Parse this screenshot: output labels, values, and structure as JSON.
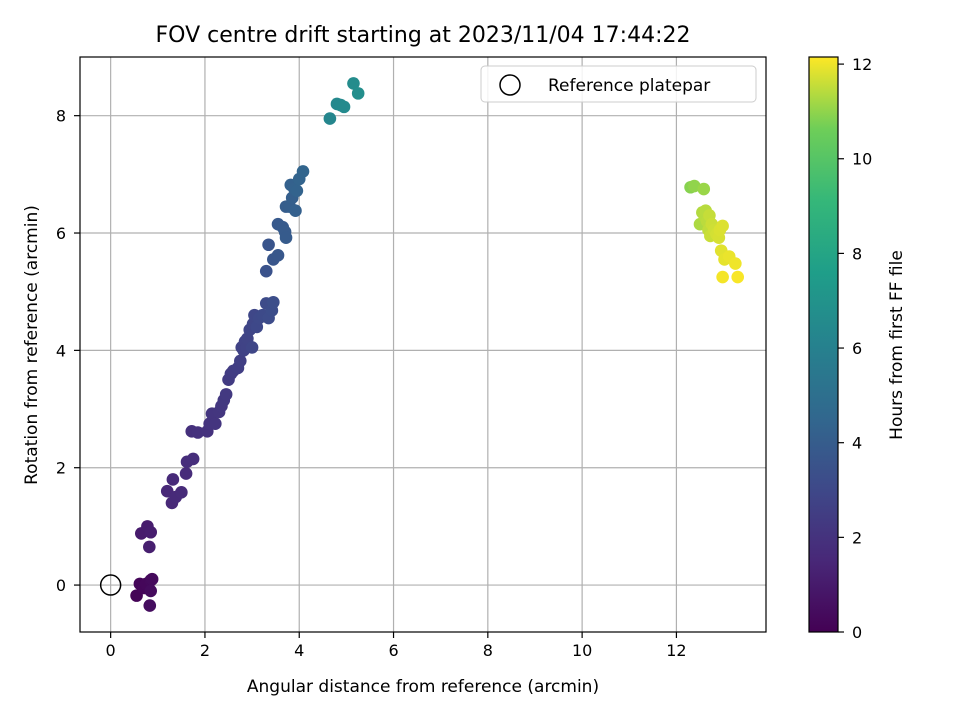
{
  "chart_data": {
    "type": "scatter",
    "title": "FOV centre drift starting at 2023/11/04 17:44:22",
    "xlabel": "Angular distance from reference (arcmin)",
    "ylabel": "Rotation from reference (arcmin)",
    "xlim": [
      -0.65,
      13.9
    ],
    "ylim": [
      -0.8,
      9.0
    ],
    "xticks": [
      0,
      2,
      4,
      6,
      8,
      10,
      12
    ],
    "yticks": [
      0,
      2,
      4,
      6,
      8
    ],
    "grid": true,
    "legend": {
      "position": "top-right",
      "entries": [
        {
          "label": "Reference platepar",
          "marker": "open-circle"
        }
      ]
    },
    "reference_point": {
      "x": 0,
      "y": 0
    },
    "colorbar": {
      "label": "Hours from first FF file",
      "colormap": "viridis",
      "range": [
        0,
        12.15
      ],
      "ticks": [
        0,
        2,
        4,
        6,
        8,
        10,
        12
      ]
    },
    "points": [
      {
        "x": 0.55,
        "y": -0.18,
        "c": 0.1
      },
      {
        "x": 0.62,
        "y": 0.02,
        "c": 0.15
      },
      {
        "x": 0.7,
        "y": -0.05,
        "c": 0.2
      },
      {
        "x": 0.75,
        "y": 0.02,
        "c": 0.25
      },
      {
        "x": 0.85,
        "y": 0.08,
        "c": 0.3
      },
      {
        "x": 0.88,
        "y": 0.1,
        "c": 0.35
      },
      {
        "x": 0.85,
        "y": -0.1,
        "c": 0.4
      },
      {
        "x": 0.83,
        "y": -0.35,
        "c": 0.45
      },
      {
        "x": 0.65,
        "y": 0.88,
        "c": 1.0
      },
      {
        "x": 0.78,
        "y": 1.0,
        "c": 1.05
      },
      {
        "x": 0.85,
        "y": 0.9,
        "c": 1.1
      },
      {
        "x": 0.82,
        "y": 0.65,
        "c": 1.15
      },
      {
        "x": 1.2,
        "y": 1.6,
        "c": 1.5
      },
      {
        "x": 1.3,
        "y": 1.4,
        "c": 1.55
      },
      {
        "x": 1.32,
        "y": 1.8,
        "c": 1.6
      },
      {
        "x": 1.38,
        "y": 1.5,
        "c": 1.62
      },
      {
        "x": 1.5,
        "y": 1.58,
        "c": 1.65
      },
      {
        "x": 1.6,
        "y": 1.9,
        "c": 1.7
      },
      {
        "x": 1.62,
        "y": 2.1,
        "c": 1.75
      },
      {
        "x": 1.75,
        "y": 2.15,
        "c": 1.8
      },
      {
        "x": 1.72,
        "y": 2.62,
        "c": 1.9
      },
      {
        "x": 1.85,
        "y": 2.6,
        "c": 1.95
      },
      {
        "x": 2.05,
        "y": 2.62,
        "c": 2.0
      },
      {
        "x": 2.1,
        "y": 2.75,
        "c": 2.05
      },
      {
        "x": 2.15,
        "y": 2.92,
        "c": 2.1
      },
      {
        "x": 2.22,
        "y": 2.75,
        "c": 2.12
      },
      {
        "x": 2.3,
        "y": 2.95,
        "c": 2.15
      },
      {
        "x": 2.35,
        "y": 3.05,
        "c": 2.2
      },
      {
        "x": 2.4,
        "y": 3.15,
        "c": 2.25
      },
      {
        "x": 2.45,
        "y": 3.25,
        "c": 2.3
      },
      {
        "x": 2.5,
        "y": 3.5,
        "c": 2.4
      },
      {
        "x": 2.55,
        "y": 3.6,
        "c": 2.45
      },
      {
        "x": 2.6,
        "y": 3.65,
        "c": 2.5
      },
      {
        "x": 2.7,
        "y": 3.7,
        "c": 2.55
      },
      {
        "x": 2.75,
        "y": 3.82,
        "c": 2.6
      },
      {
        "x": 2.78,
        "y": 4.05,
        "c": 2.7
      },
      {
        "x": 2.82,
        "y": 4.0,
        "c": 2.72
      },
      {
        "x": 2.85,
        "y": 4.15,
        "c": 2.75
      },
      {
        "x": 2.88,
        "y": 4.05,
        "c": 2.78
      },
      {
        "x": 2.9,
        "y": 4.2,
        "c": 2.8
      },
      {
        "x": 2.95,
        "y": 4.35,
        "c": 2.85
      },
      {
        "x": 3.0,
        "y": 4.05,
        "c": 2.88
      },
      {
        "x": 3.02,
        "y": 4.45,
        "c": 2.9
      },
      {
        "x": 3.05,
        "y": 4.6,
        "c": 2.95
      },
      {
        "x": 3.1,
        "y": 4.4,
        "c": 3.0
      },
      {
        "x": 3.15,
        "y": 4.55,
        "c": 3.05
      },
      {
        "x": 3.22,
        "y": 4.6,
        "c": 3.1
      },
      {
        "x": 3.3,
        "y": 4.8,
        "c": 3.15
      },
      {
        "x": 3.35,
        "y": 4.55,
        "c": 3.2
      },
      {
        "x": 3.42,
        "y": 4.68,
        "c": 3.25
      },
      {
        "x": 3.45,
        "y": 4.82,
        "c": 3.3
      },
      {
        "x": 3.3,
        "y": 5.35,
        "c": 3.5
      },
      {
        "x": 3.35,
        "y": 5.8,
        "c": 3.6
      },
      {
        "x": 3.45,
        "y": 5.55,
        "c": 3.65
      },
      {
        "x": 3.55,
        "y": 5.62,
        "c": 3.7
      },
      {
        "x": 3.55,
        "y": 6.15,
        "c": 3.8
      },
      {
        "x": 3.65,
        "y": 6.1,
        "c": 3.85
      },
      {
        "x": 3.7,
        "y": 6.02,
        "c": 3.9
      },
      {
        "x": 3.72,
        "y": 5.92,
        "c": 3.92
      },
      {
        "x": 3.72,
        "y": 6.45,
        "c": 4.0
      },
      {
        "x": 3.8,
        "y": 6.45,
        "c": 4.05
      },
      {
        "x": 3.85,
        "y": 6.6,
        "c": 4.1
      },
      {
        "x": 3.92,
        "y": 6.38,
        "c": 4.15
      },
      {
        "x": 3.82,
        "y": 6.82,
        "c": 4.2
      },
      {
        "x": 3.9,
        "y": 6.75,
        "c": 4.25
      },
      {
        "x": 3.95,
        "y": 6.72,
        "c": 4.3
      },
      {
        "x": 4.0,
        "y": 6.92,
        "c": 4.35
      },
      {
        "x": 4.08,
        "y": 7.05,
        "c": 4.4
      },
      {
        "x": 4.65,
        "y": 7.95,
        "c": 6.3
      },
      {
        "x": 4.8,
        "y": 8.2,
        "c": 6.4
      },
      {
        "x": 4.88,
        "y": 8.18,
        "c": 6.45
      },
      {
        "x": 4.95,
        "y": 8.15,
        "c": 6.5
      },
      {
        "x": 5.15,
        "y": 8.55,
        "c": 6.6
      },
      {
        "x": 5.25,
        "y": 8.38,
        "c": 6.7
      },
      {
        "x": 12.3,
        "y": 6.78,
        "c": 10.9
      },
      {
        "x": 12.38,
        "y": 6.8,
        "c": 11.0
      },
      {
        "x": 12.58,
        "y": 6.75,
        "c": 11.1
      },
      {
        "x": 12.5,
        "y": 6.15,
        "c": 11.3
      },
      {
        "x": 12.55,
        "y": 6.35,
        "c": 11.35
      },
      {
        "x": 12.6,
        "y": 6.28,
        "c": 11.4
      },
      {
        "x": 12.62,
        "y": 6.38,
        "c": 11.42
      },
      {
        "x": 12.65,
        "y": 6.2,
        "c": 11.45
      },
      {
        "x": 12.68,
        "y": 6.05,
        "c": 11.5
      },
      {
        "x": 12.7,
        "y": 6.3,
        "c": 11.55
      },
      {
        "x": 12.72,
        "y": 5.95,
        "c": 11.6
      },
      {
        "x": 12.75,
        "y": 6.15,
        "c": 11.62
      },
      {
        "x": 12.8,
        "y": 6.05,
        "c": 11.65
      },
      {
        "x": 12.85,
        "y": 5.98,
        "c": 11.7
      },
      {
        "x": 12.9,
        "y": 5.92,
        "c": 11.75
      },
      {
        "x": 12.92,
        "y": 6.05,
        "c": 11.78
      },
      {
        "x": 12.98,
        "y": 6.12,
        "c": 11.8
      },
      {
        "x": 12.95,
        "y": 5.7,
        "c": 11.85
      },
      {
        "x": 13.02,
        "y": 5.55,
        "c": 11.9
      },
      {
        "x": 13.12,
        "y": 5.6,
        "c": 11.95
      },
      {
        "x": 13.25,
        "y": 5.48,
        "c": 12.0
      },
      {
        "x": 12.98,
        "y": 5.25,
        "c": 12.05
      },
      {
        "x": 13.3,
        "y": 5.25,
        "c": 12.1
      }
    ]
  }
}
